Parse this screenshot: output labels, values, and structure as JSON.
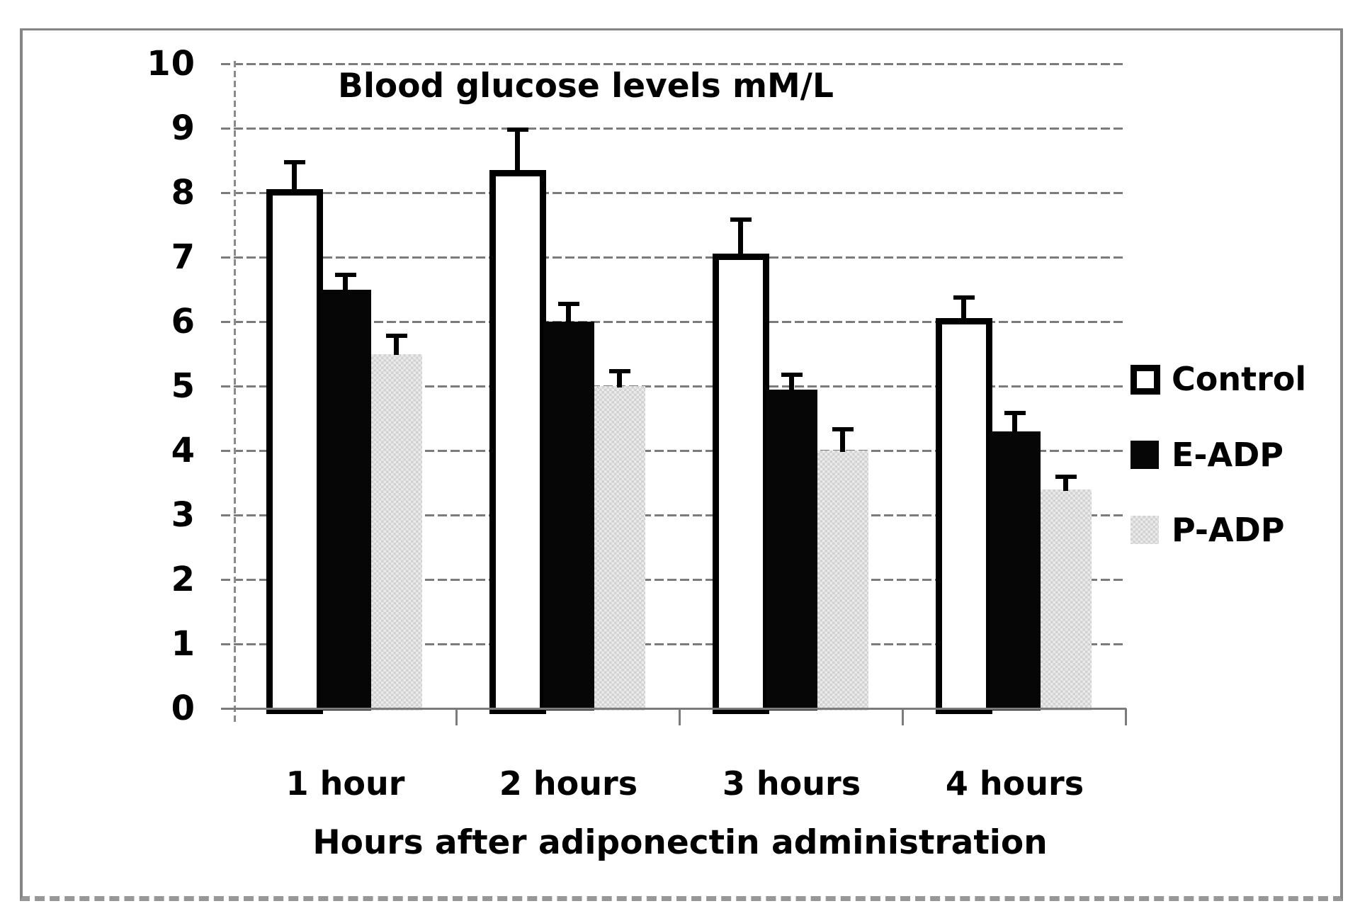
{
  "figure": {
    "title": "Blood glucose levels mM/L",
    "x_axis_title": "Hours after adiponectin administration"
  },
  "chart_data": {
    "type": "bar",
    "title": "Blood glucose levels mM/L",
    "xlabel": "Hours after adiponectin administration",
    "ylabel": "",
    "categories": [
      "1 hour",
      "2 hours",
      "3 hours",
      "4 hours"
    ],
    "series": [
      {
        "name": "Control",
        "style": "white-black-outline",
        "values": [
          8.05,
          8.35,
          7.05,
          6.05
        ],
        "errors_plus": [
          0.45,
          0.65,
          0.55,
          0.35
        ]
      },
      {
        "name": "E-ADP",
        "style": "solid-black",
        "values": [
          6.5,
          6.0,
          4.95,
          4.3
        ],
        "errors_plus": [
          0.25,
          0.3,
          0.25,
          0.3
        ]
      },
      {
        "name": "P-ADP",
        "style": "light-gray-checker",
        "values": [
          5.5,
          5.0,
          4.0,
          3.4
        ],
        "errors_plus": [
          0.3,
          0.25,
          0.35,
          0.22
        ]
      }
    ],
    "ylim": [
      0,
      10
    ],
    "yticks": [
      0,
      1,
      2,
      3,
      4,
      5,
      6,
      7,
      8,
      9,
      10
    ],
    "grid": true,
    "gridline_style": "dashed-gray",
    "error_bars": true,
    "legend_position": "right"
  },
  "legend": {
    "items": [
      {
        "label": "Control",
        "swatch": "white-square-black-border"
      },
      {
        "label": "E-ADP",
        "swatch": "black-square"
      },
      {
        "label": "P-ADP",
        "swatch": "gray-checker-square"
      }
    ]
  },
  "colors": {
    "grid": "#7b7b7b",
    "frame": "#858585",
    "bar_outline": "#000000",
    "eadp_fill": "#060606",
    "padp_check_dark": "#d2d2d2",
    "padp_check_light": "#eaeaea",
    "text": "#000000"
  }
}
